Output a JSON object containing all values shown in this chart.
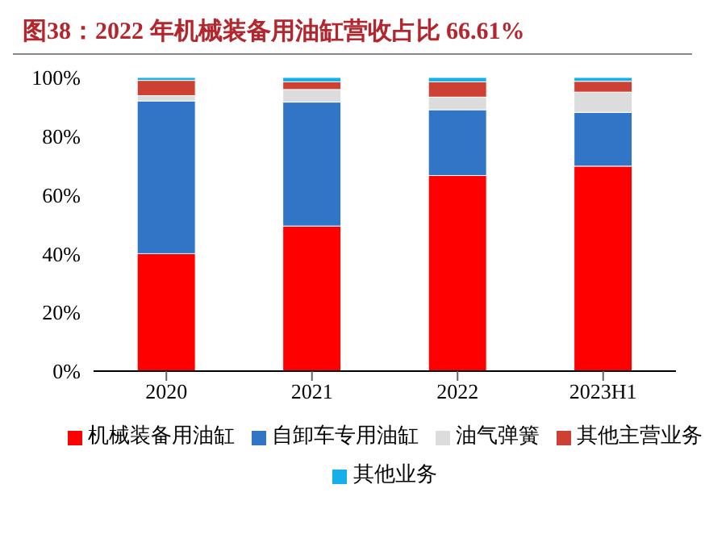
{
  "chart_data": {
    "type": "bar",
    "title": "图38：2022 年机械装备用油缸营收占比 66.61%",
    "categories": [
      "2020",
      "2021",
      "2022",
      "2023H1"
    ],
    "stacked": true,
    "series": [
      {
        "name": "机械装备用油缸",
        "color": "#ff0000",
        "values": [
          40,
          49.4,
          66.61,
          69.8
        ]
      },
      {
        "name": "自卸车专用油缸",
        "color": "#3175c6",
        "values": [
          52,
          42.2,
          22.4,
          18.3
        ]
      },
      {
        "name": "油气弹簧",
        "color": "#dcdcdc",
        "values": [
          1.8,
          4.3,
          4.3,
          6.9
        ]
      },
      {
        "name": "其他主营业务",
        "color": "#cc4133",
        "values": [
          5.2,
          2.6,
          5.2,
          3.7
        ]
      },
      {
        "name": "其他业务",
        "color": "#13b0ea",
        "values": [
          1,
          1.5,
          1.5,
          1.3
        ]
      }
    ],
    "ylim": [
      0,
      100
    ],
    "yticks": [
      {
        "value": 0,
        "label": "0%"
      },
      {
        "value": 20,
        "label": "20%"
      },
      {
        "value": 40,
        "label": "40%"
      },
      {
        "value": 60,
        "label": "60%"
      },
      {
        "value": 80,
        "label": "80%"
      },
      {
        "value": 100,
        "label": "100%"
      }
    ],
    "grid": false,
    "legend": "bottom"
  }
}
